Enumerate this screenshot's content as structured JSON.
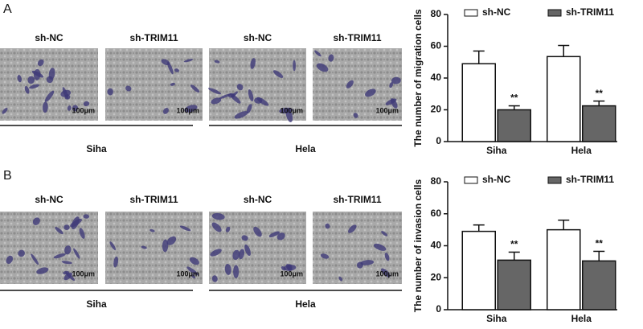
{
  "panels": [
    {
      "label": "A",
      "images": [
        {
          "title": "sh-NC",
          "scale": "100μm"
        },
        {
          "title": "sh-TRIM11",
          "scale": "100μm"
        },
        {
          "title": "sh-NC",
          "scale": "100μm"
        },
        {
          "title": "sh-TRIM11",
          "scale": "100μm"
        }
      ],
      "groups": [
        "Siha",
        "Hela"
      ]
    },
    {
      "label": "B",
      "images": [
        {
          "title": "sh-NC",
          "scale": "100μm"
        },
        {
          "title": "sh-TRIM11",
          "scale": "100μm"
        },
        {
          "title": "sh-NC",
          "scale": "100μm"
        },
        {
          "title": "sh-TRIM11",
          "scale": "100μm"
        }
      ],
      "groups": [
        "Siha",
        "Hela"
      ]
    }
  ],
  "chart_data": [
    {
      "type": "bar",
      "y_label": "The number of migration cells",
      "categories": [
        "Siha",
        "Hela"
      ],
      "series": [
        {
          "name": "sh-NC",
          "color": "#ffffff",
          "values": [
            49,
            53.5
          ],
          "errors": [
            8,
            7
          ]
        },
        {
          "name": "sh-TRIM11",
          "color": "#666666",
          "values": [
            20,
            22.5
          ],
          "errors": [
            2.5,
            3
          ],
          "significance": [
            "**",
            "**"
          ]
        }
      ],
      "ylim": [
        0,
        80
      ],
      "yticks": [
        0,
        20,
        40,
        60,
        80
      ]
    },
    {
      "type": "bar",
      "y_label": "The number of invasion cells",
      "categories": [
        "Siha",
        "Hela"
      ],
      "series": [
        {
          "name": "sh-NC",
          "color": "#ffffff",
          "values": [
            49,
            50
          ],
          "errors": [
            4,
            6
          ]
        },
        {
          "name": "sh-TRIM11",
          "color": "#666666",
          "values": [
            31,
            30.5
          ],
          "errors": [
            5,
            6
          ],
          "significance": [
            "**",
            "**"
          ]
        }
      ],
      "ylim": [
        0,
        80
      ],
      "yticks": [
        0,
        20,
        40,
        60,
        80
      ]
    }
  ]
}
